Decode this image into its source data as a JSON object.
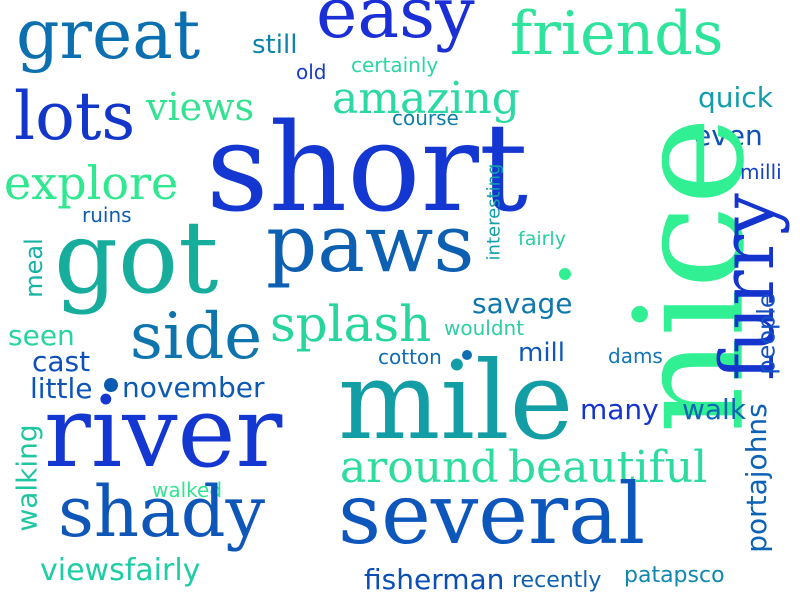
{
  "word_cloud": {
    "words": [
      {
        "text": "easy",
        "color": "#1b2fd6"
      },
      {
        "text": "great",
        "color": "#0b6fb0"
      },
      {
        "text": "friends",
        "color": "#2ee39b"
      },
      {
        "text": "still",
        "color": "#0d84a8"
      },
      {
        "text": "old",
        "color": "#1a3bc4"
      },
      {
        "text": "certainly",
        "color": "#2bd7a1"
      },
      {
        "text": "lots",
        "color": "#1236c9"
      },
      {
        "text": "views",
        "color": "#33e391"
      },
      {
        "text": "amazing",
        "color": "#2cd8a3"
      },
      {
        "text": "quick",
        "color": "#119dab"
      },
      {
        "text": "course",
        "color": "#0b7fa7"
      },
      {
        "text": "short",
        "color": "#1437d1"
      },
      {
        "text": "even",
        "color": "#0f52b6"
      },
      {
        "text": "explore",
        "color": "#2fe890"
      },
      {
        "text": "nice",
        "color": "#31ef93"
      },
      {
        "text": "milli",
        "color": "#1541c7"
      },
      {
        "text": "ruins",
        "color": "#0d5dae"
      },
      {
        "text": "furry",
        "color": "#1434cd"
      },
      {
        "text": "got",
        "color": "#16ad9d"
      },
      {
        "text": "paws",
        "color": "#0d5fb2"
      },
      {
        "text": "interesting",
        "color": "#10a0aa"
      },
      {
        "text": "fairly",
        "color": "#27cfa0"
      },
      {
        "text": "meal",
        "color": "#16b3a2"
      },
      {
        "text": "savage",
        "color": "#0e77ae"
      },
      {
        "text": "people",
        "color": "#1351c0"
      },
      {
        "text": "seen",
        "color": "#29d4a0"
      },
      {
        "text": "side",
        "color": "#0e74ad"
      },
      {
        "text": "splash",
        "color": "#27d69b"
      },
      {
        "text": "wouldnt",
        "color": "#2ecda3"
      },
      {
        "text": "cotton",
        "color": "#106db3"
      },
      {
        "text": "mill",
        "color": "#0f58b8"
      },
      {
        "text": "cast",
        "color": "#0f4fb8"
      },
      {
        "text": "dams",
        "color": "#1276b0"
      },
      {
        "text": "little",
        "color": "#0e54ba"
      },
      {
        "text": "november",
        "color": "#0d5ab2"
      },
      {
        "text": "mile",
        "color": "#139da4"
      },
      {
        "text": "many",
        "color": "#1635cb"
      },
      {
        "text": "walk",
        "color": "#0f66b1"
      },
      {
        "text": "river",
        "color": "#1437d1"
      },
      {
        "text": "portajohns",
        "color": "#0d62b4"
      },
      {
        "text": "walking",
        "color": "#20c6a0"
      },
      {
        "text": "around",
        "color": "#2edc9e"
      },
      {
        "text": "beautiful",
        "color": "#2edb9f"
      },
      {
        "text": "walked",
        "color": "#34e38f"
      },
      {
        "text": "shady",
        "color": "#0e57b8"
      },
      {
        "text": "several",
        "color": "#0d56bc"
      },
      {
        "text": "viewsfairly",
        "color": "#1fcda5"
      },
      {
        "text": "fisherman",
        "color": "#0b4fb6"
      },
      {
        "text": "recently",
        "color": "#0f61b0"
      },
      {
        "text": "patapsco",
        "color": "#1087ac"
      }
    ]
  }
}
